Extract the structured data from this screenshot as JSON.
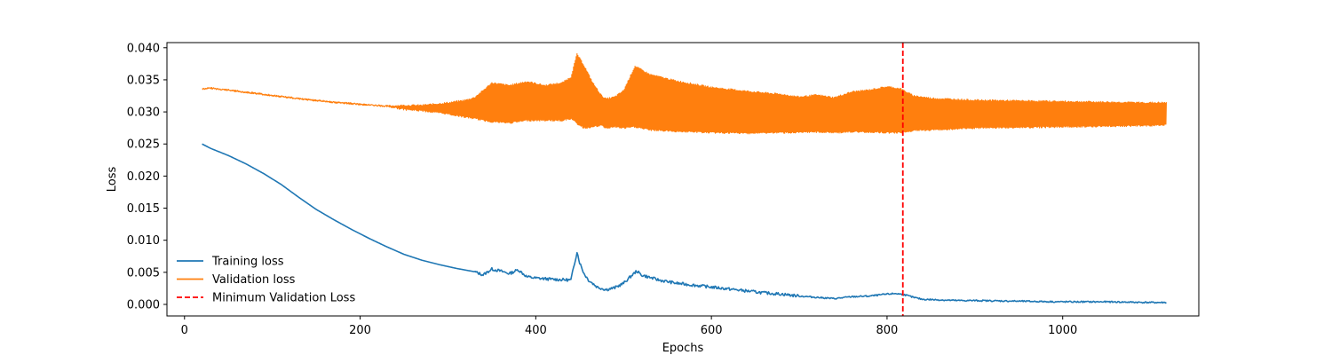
{
  "chart_data": {
    "type": "line",
    "xlabel": "Epochs",
    "ylabel": "Loss",
    "xlim": [
      -20,
      1155
    ],
    "ylim": [
      -0.0018,
      0.0408
    ],
    "xticks": [
      0,
      200,
      400,
      600,
      800,
      1000
    ],
    "xtick_labels": [
      "0",
      "200",
      "400",
      "600",
      "800",
      "1000"
    ],
    "yticks": [
      0.0,
      0.005,
      0.01,
      0.015,
      0.02,
      0.025,
      0.03,
      0.035,
      0.04
    ],
    "ytick_labels": [
      "0.000",
      "0.005",
      "0.010",
      "0.015",
      "0.020",
      "0.025",
      "0.030",
      "0.035",
      "0.040"
    ],
    "grid": false,
    "legend_position": "lower-left",
    "series": [
      {
        "name": "Training loss",
        "color": "#1f77b4",
        "x": [
          20,
          30,
          50,
          70,
          90,
          110,
          130,
          150,
          170,
          190,
          210,
          230,
          250,
          270,
          290,
          310,
          330,
          340,
          350,
          360,
          370,
          380,
          390,
          400,
          420,
          440,
          447,
          450,
          455,
          460,
          470,
          480,
          490,
          500,
          510,
          515,
          520,
          540,
          560,
          580,
          600,
          620,
          640,
          660,
          680,
          700,
          720,
          740,
          760,
          780,
          800,
          810,
          820,
          830,
          840,
          860,
          880,
          900,
          950,
          1000,
          1050,
          1100,
          1118
        ],
        "y": [
          0.025,
          0.0243,
          0.0232,
          0.0219,
          0.0204,
          0.0187,
          0.0167,
          0.0148,
          0.0132,
          0.0117,
          0.0103,
          0.009,
          0.0078,
          0.0069,
          0.0062,
          0.0056,
          0.0051,
          0.0046,
          0.0055,
          0.0052,
          0.0048,
          0.0054,
          0.0043,
          0.0041,
          0.0039,
          0.0038,
          0.0082,
          0.0065,
          0.0048,
          0.0038,
          0.0027,
          0.0023,
          0.0026,
          0.0033,
          0.0046,
          0.0052,
          0.0046,
          0.0038,
          0.0033,
          0.003,
          0.0027,
          0.0024,
          0.0021,
          0.0018,
          0.0016,
          0.0013,
          0.0011,
          0.0009,
          0.0012,
          0.0013,
          0.0016,
          0.0017,
          0.0015,
          0.0011,
          0.0008,
          0.0007,
          0.0006,
          0.0006,
          0.0005,
          0.0004,
          0.0004,
          0.0003,
          0.0003
        ]
      },
      {
        "name": "Validation loss",
        "color": "#ff7f0e",
        "x": [
          20,
          30,
          50,
          80,
          110,
          140,
          150,
          170,
          200,
          230,
          250,
          270,
          300,
          320,
          330,
          340,
          350,
          370,
          390,
          410,
          430,
          440,
          447,
          455,
          465,
          475,
          480,
          490,
          500,
          513,
          530,
          560,
          600,
          640,
          680,
          700,
          720,
          740,
          760,
          780,
          800,
          815,
          830,
          850,
          900,
          950,
          1000,
          1050,
          1100,
          1118
        ],
        "y": [
          0.0336,
          0.0337,
          0.0334,
          0.0329,
          0.0324,
          0.0319,
          0.0318,
          0.0315,
          0.0312,
          0.0309,
          0.0307,
          0.0306,
          0.0305,
          0.0305,
          0.0306,
          0.0317,
          0.0318,
          0.0312,
          0.0317,
          0.0314,
          0.0316,
          0.0322,
          0.0352,
          0.0338,
          0.0313,
          0.0299,
          0.0295,
          0.0297,
          0.0303,
          0.0325,
          0.0315,
          0.0307,
          0.0303,
          0.0301,
          0.0302,
          0.0301,
          0.0302,
          0.0299,
          0.0301,
          0.0305,
          0.0308,
          0.0303,
          0.0297,
          0.0295,
          0.0294,
          0.0295,
          0.0296,
          0.0296,
          0.0297,
          0.0297
        ],
        "band_upper": [
          0.0336,
          0.0337,
          0.0334,
          0.0329,
          0.0324,
          0.0319,
          0.0318,
          0.0315,
          0.0312,
          0.0309,
          0.031,
          0.031,
          0.0314,
          0.0318,
          0.0322,
          0.0333,
          0.0345,
          0.0341,
          0.0347,
          0.0341,
          0.0345,
          0.0354,
          0.039,
          0.0372,
          0.0345,
          0.0325,
          0.032,
          0.0323,
          0.0333,
          0.0371,
          0.0358,
          0.0348,
          0.0338,
          0.0332,
          0.0327,
          0.0323,
          0.0326,
          0.0322,
          0.0331,
          0.0334,
          0.0339,
          0.0336,
          0.0325,
          0.0321,
          0.0318,
          0.0317,
          0.0316,
          0.0315,
          0.0314,
          0.0314
        ],
        "band_lower": [
          0.0336,
          0.0337,
          0.0334,
          0.0329,
          0.0324,
          0.0319,
          0.0318,
          0.0315,
          0.0312,
          0.0309,
          0.0304,
          0.0302,
          0.0297,
          0.0292,
          0.029,
          0.0287,
          0.0285,
          0.0283,
          0.0287,
          0.0287,
          0.0287,
          0.029,
          0.0282,
          0.0275,
          0.0277,
          0.0279,
          0.0275,
          0.0277,
          0.0275,
          0.0277,
          0.0272,
          0.027,
          0.0268,
          0.0267,
          0.0268,
          0.0268,
          0.0269,
          0.0268,
          0.0269,
          0.0269,
          0.0268,
          0.0268,
          0.0271,
          0.0272,
          0.0275,
          0.0276,
          0.0277,
          0.0278,
          0.0279,
          0.028
        ]
      }
    ],
    "reference_lines": [
      {
        "name": "Minimum Validation Loss",
        "orientation": "vertical",
        "x": 818,
        "color": "#ff0000",
        "style": "dashed"
      }
    ]
  }
}
